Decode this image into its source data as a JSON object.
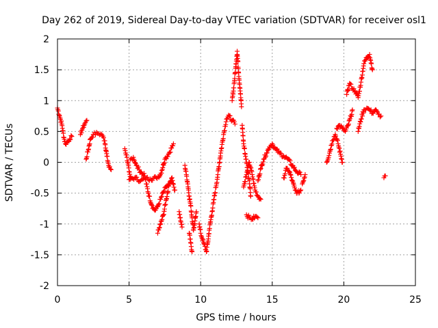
{
  "chart_data": {
    "type": "scatter",
    "title": "Day 262 of 2019, Sidereal Day-to-day VTEC variation (SDTVAR) for receiver osl1",
    "xlabel": "GPS time / hours",
    "ylabel": "SDTVAR / TECUs",
    "xlim": [
      0,
      25
    ],
    "ylim": [
      -2,
      2
    ],
    "grid": true,
    "marker": "+",
    "color": "#ff0000",
    "xticks": [
      {
        "value": 0,
        "label": "0"
      },
      {
        "value": 5,
        "label": "5"
      },
      {
        "value": 10,
        "label": "10"
      },
      {
        "value": 15,
        "label": "15"
      },
      {
        "value": 20,
        "label": "20"
      },
      {
        "value": 25,
        "label": "25"
      }
    ],
    "yticks": [
      {
        "value": -2,
        "label": "-2"
      },
      {
        "value": -1.5,
        "label": "-1.5"
      },
      {
        "value": -1,
        "label": "-1"
      },
      {
        "value": -0.5,
        "label": "-0.5"
      },
      {
        "value": 0,
        "label": "0"
      },
      {
        "value": 0.5,
        "label": "0.5"
      },
      {
        "value": 1,
        "label": "1"
      },
      {
        "value": 1.5,
        "label": "1.5"
      },
      {
        "value": 2,
        "label": "2"
      }
    ],
    "series": [
      {
        "name": "seg-0.0",
        "points": [
          [
            0.0,
            0.88
          ],
          [
            0.15,
            0.75
          ],
          [
            0.3,
            0.62
          ],
          [
            0.45,
            0.4
          ],
          [
            0.55,
            0.3
          ],
          [
            0.7,
            0.33
          ],
          [
            0.85,
            0.38
          ],
          [
            1.0,
            0.42
          ]
        ]
      },
      {
        "name": "seg-1.6",
        "points": [
          [
            1.6,
            0.45
          ],
          [
            1.75,
            0.55
          ],
          [
            1.9,
            0.62
          ],
          [
            2.05,
            0.68
          ]
        ]
      },
      {
        "name": "seg-2.0",
        "points": [
          [
            2.0,
            0.05
          ],
          [
            2.15,
            0.2
          ],
          [
            2.3,
            0.38
          ],
          [
            2.5,
            0.45
          ],
          [
            2.8,
            0.47
          ],
          [
            3.1,
            0.45
          ],
          [
            3.3,
            0.35
          ],
          [
            3.45,
            0.1
          ],
          [
            3.6,
            -0.08
          ],
          [
            3.75,
            -0.12
          ]
        ]
      },
      {
        "name": "seg-4.7",
        "points": [
          [
            4.7,
            0.22
          ],
          [
            4.85,
            0.08
          ],
          [
            5.0,
            -0.15
          ],
          [
            5.1,
            -0.27
          ]
        ]
      },
      {
        "name": "seg-5.1",
        "points": [
          [
            5.1,
            0.05
          ],
          [
            5.3,
            0.08
          ],
          [
            5.5,
            -0.05
          ],
          [
            5.7,
            -0.12
          ],
          [
            5.9,
            -0.18
          ],
          [
            6.1,
            -0.22
          ]
        ]
      },
      {
        "name": "seg-5.0b",
        "points": [
          [
            5.0,
            -0.28
          ],
          [
            5.4,
            -0.25
          ],
          [
            5.8,
            -0.3
          ],
          [
            6.2,
            -0.26
          ],
          [
            6.5,
            -0.27
          ],
          [
            6.9,
            -0.25
          ],
          [
            7.2,
            -0.2
          ],
          [
            7.5,
            0.05
          ],
          [
            7.8,
            0.15
          ],
          [
            8.1,
            0.3
          ]
        ]
      },
      {
        "name": "seg-6.2",
        "points": [
          [
            6.2,
            -0.35
          ],
          [
            6.4,
            -0.55
          ],
          [
            6.6,
            -0.7
          ],
          [
            6.8,
            -0.78
          ],
          [
            7.0,
            -0.72
          ],
          [
            7.2,
            -0.6
          ],
          [
            7.4,
            -0.48
          ],
          [
            7.6,
            -0.4
          ],
          [
            7.8,
            -0.35
          ],
          [
            8.0,
            -0.3
          ],
          [
            8.2,
            -0.45
          ]
        ]
      },
      {
        "name": "seg-7.0",
        "points": [
          [
            7.0,
            -1.15
          ],
          [
            7.2,
            -1.0
          ],
          [
            7.4,
            -0.85
          ],
          [
            7.6,
            -0.6
          ],
          [
            7.8,
            -0.35
          ],
          [
            8.0,
            -0.25
          ]
        ]
      },
      {
        "name": "seg-8.5",
        "points": [
          [
            8.5,
            -0.8
          ],
          [
            8.6,
            -0.95
          ],
          [
            8.7,
            -1.05
          ]
        ]
      },
      {
        "name": "seg-9.0",
        "points": [
          [
            8.9,
            -0.05
          ],
          [
            9.0,
            -0.2
          ],
          [
            9.1,
            -0.35
          ],
          [
            9.2,
            -0.55
          ],
          [
            9.3,
            -0.7
          ],
          [
            9.4,
            -0.9
          ],
          [
            9.5,
            -1.1
          ],
          [
            9.6,
            -0.95
          ],
          [
            9.7,
            -0.8
          ]
        ]
      },
      {
        "name": "seg-9.2",
        "points": [
          [
            9.2,
            -1.15
          ],
          [
            9.3,
            -1.3
          ],
          [
            9.4,
            -1.45
          ]
        ]
      },
      {
        "name": "seg-10",
        "points": [
          [
            9.9,
            -1.0
          ],
          [
            10.0,
            -1.15
          ],
          [
            10.2,
            -1.3
          ],
          [
            10.4,
            -1.45
          ],
          [
            10.5,
            -1.3
          ],
          [
            10.6,
            -1.1
          ],
          [
            10.8,
            -0.8
          ],
          [
            11.0,
            -0.5
          ],
          [
            11.2,
            -0.2
          ],
          [
            11.4,
            0.15
          ],
          [
            11.6,
            0.45
          ],
          [
            11.8,
            0.7
          ],
          [
            12.0,
            0.75
          ],
          [
            12.2,
            0.68
          ],
          [
            12.4,
            0.62
          ]
        ]
      },
      {
        "name": "seg-12peak",
        "points": [
          [
            12.2,
            1.0
          ],
          [
            12.35,
            1.3
          ],
          [
            12.45,
            1.55
          ],
          [
            12.55,
            1.8
          ],
          [
            12.65,
            1.45
          ],
          [
            12.75,
            1.2
          ],
          [
            12.85,
            0.9
          ]
        ]
      },
      {
        "name": "seg-13",
        "points": [
          [
            12.9,
            0.6
          ],
          [
            13.0,
            0.3
          ],
          [
            13.2,
            0.0
          ],
          [
            13.4,
            -0.3
          ],
          [
            13.5,
            -0.55
          ]
        ]
      },
      {
        "name": "seg-13b",
        "points": [
          [
            13.0,
            -0.4
          ],
          [
            13.2,
            -0.2
          ],
          [
            13.4,
            0.0
          ],
          [
            13.6,
            -0.2
          ],
          [
            13.8,
            -0.45
          ],
          [
            14.0,
            -0.55
          ],
          [
            14.2,
            -0.6
          ]
        ]
      },
      {
        "name": "seg-13c",
        "points": [
          [
            13.2,
            -0.85
          ],
          [
            13.4,
            -0.9
          ],
          [
            13.6,
            -0.92
          ],
          [
            13.8,
            -0.88
          ],
          [
            14.0,
            -0.9
          ]
        ]
      },
      {
        "name": "seg-14",
        "points": [
          [
            14.0,
            -0.3
          ],
          [
            14.2,
            -0.1
          ],
          [
            14.4,
            0.05
          ],
          [
            14.6,
            0.15
          ],
          [
            14.8,
            0.25
          ],
          [
            15.0,
            0.3
          ],
          [
            15.2,
            0.22
          ],
          [
            15.5,
            0.15
          ],
          [
            15.8,
            0.1
          ],
          [
            16.1,
            0.05
          ],
          [
            16.4,
            -0.05
          ],
          [
            16.7,
            -0.15
          ],
          [
            17.0,
            -0.2
          ]
        ]
      },
      {
        "name": "seg-16",
        "points": [
          [
            15.8,
            -0.25
          ],
          [
            16.0,
            -0.1
          ],
          [
            16.2,
            -0.15
          ],
          [
            16.4,
            -0.3
          ],
          [
            16.6,
            -0.45
          ],
          [
            16.8,
            -0.5
          ],
          [
            17.0,
            -0.45
          ]
        ]
      },
      {
        "name": "seg-17",
        "points": [
          [
            17.1,
            -0.35
          ],
          [
            17.3,
            -0.2
          ]
        ]
      },
      {
        "name": "seg-19",
        "points": [
          [
            18.8,
            0.0
          ],
          [
            19.0,
            0.15
          ],
          [
            19.2,
            0.35
          ],
          [
            19.4,
            0.45
          ],
          [
            19.6,
            0.3
          ],
          [
            19.8,
            0.1
          ],
          [
            19.9,
            0.0
          ]
        ]
      },
      {
        "name": "seg-19b",
        "points": [
          [
            19.5,
            0.55
          ],
          [
            19.7,
            0.6
          ],
          [
            19.9,
            0.55
          ],
          [
            20.1,
            0.5
          ],
          [
            20.3,
            0.6
          ],
          [
            20.5,
            0.75
          ],
          [
            20.6,
            0.85
          ]
        ]
      },
      {
        "name": "seg-20",
        "points": [
          [
            20.2,
            1.1
          ],
          [
            20.4,
            1.28
          ],
          [
            20.6,
            1.2
          ],
          [
            20.8,
            1.15
          ],
          [
            21.0,
            1.05
          ],
          [
            21.2,
            1.3
          ],
          [
            21.4,
            1.6
          ],
          [
            21.6,
            1.7
          ],
          [
            21.8,
            1.75
          ],
          [
            22.0,
            1.5
          ]
        ]
      },
      {
        "name": "seg-21",
        "points": [
          [
            21.0,
            0.5
          ],
          [
            21.2,
            0.7
          ],
          [
            21.4,
            0.85
          ],
          [
            21.6,
            0.88
          ],
          [
            21.8,
            0.85
          ],
          [
            22.0,
            0.8
          ],
          [
            22.2,
            0.85
          ],
          [
            22.4,
            0.78
          ],
          [
            22.6,
            0.75
          ]
        ]
      },
      {
        "name": "seg-23",
        "points": [
          [
            22.8,
            -0.25
          ],
          [
            22.9,
            -0.22
          ]
        ]
      }
    ]
  }
}
